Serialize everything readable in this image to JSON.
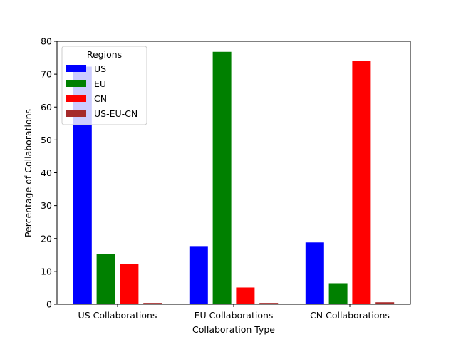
{
  "chart_data": {
    "type": "bar",
    "title": "",
    "xlabel": "Collaboration Type",
    "ylabel": "Percentage of Collaborations",
    "ylim": [
      0,
      80
    ],
    "yticks": [
      0,
      10,
      20,
      30,
      40,
      50,
      60,
      70,
      80
    ],
    "categories": [
      "US Collaborations",
      "EU Collaborations",
      "CN Collaborations"
    ],
    "series": [
      {
        "name": "US",
        "color": "#0000ff",
        "values": [
          72.3,
          17.7,
          18.8
        ]
      },
      {
        "name": "EU",
        "color": "#008000",
        "values": [
          15.2,
          76.8,
          6.4
        ]
      },
      {
        "name": "CN",
        "color": "#ff0000",
        "values": [
          12.3,
          5.1,
          74.1
        ]
      },
      {
        "name": "US-EU-CN",
        "color": "#a52a2a",
        "values": [
          0.4,
          0.4,
          0.6
        ]
      }
    ],
    "legend": {
      "title": "Regions",
      "placement": "top-left"
    },
    "grid": false
  }
}
